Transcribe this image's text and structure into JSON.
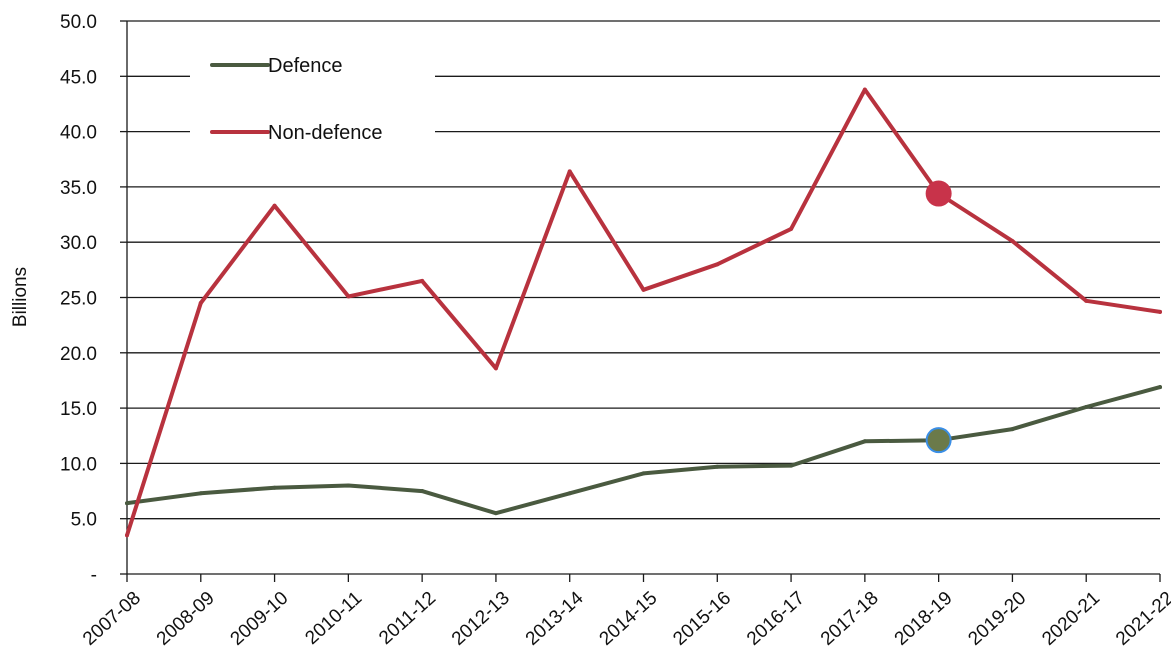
{
  "chart_data": {
    "type": "line",
    "title": "",
    "xlabel": "",
    "ylabel": "Billions",
    "ylim": [
      0,
      50
    ],
    "y_ticks": [
      "-",
      "5.0",
      "10.0",
      "15.0",
      "20.0",
      "25.0",
      "30.0",
      "35.0",
      "40.0",
      "45.0",
      "50.0"
    ],
    "y_tick_values": [
      0,
      5,
      10,
      15,
      20,
      25,
      30,
      35,
      40,
      45,
      50
    ],
    "grid": true,
    "legend_position": "top-left",
    "categories": [
      "2007-08",
      "2008-09",
      "2009-10",
      "2010-11",
      "2011-12",
      "2012-13",
      "2013-14",
      "2014-15",
      "2015-16",
      "2016-17",
      "2017-18",
      "2018-19",
      "2019-20",
      "2020-21",
      "2021-22"
    ],
    "series": [
      {
        "name": "Defence",
        "color": "#4a5a40",
        "values": [
          6.4,
          7.3,
          7.8,
          8.0,
          7.5,
          5.5,
          7.3,
          9.1,
          9.7,
          9.8,
          12.0,
          12.1,
          13.1,
          15.1,
          16.9
        ],
        "highlight_index": 11,
        "highlight_color": "#6b7a4a",
        "highlight_stroke": "#3a8ee6"
      },
      {
        "name": "Non-defence",
        "color": "#b8323e",
        "values": [
          3.5,
          24.5,
          33.3,
          25.1,
          26.5,
          18.6,
          36.4,
          25.7,
          28.0,
          31.2,
          43.8,
          34.4,
          30.1,
          24.7,
          23.7
        ],
        "highlight_index": 11,
        "highlight_color": "#c8334a",
        "highlight_stroke": "#c8334a"
      }
    ]
  }
}
